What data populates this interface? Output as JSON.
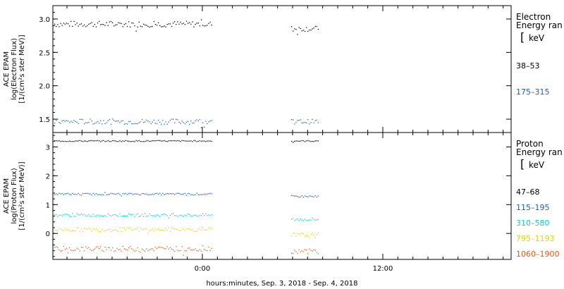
{
  "chart_data": [
    {
      "type": "scatter",
      "panel": "electron",
      "ylabel_lines": [
        "ACE EPAM",
        "log(Electron Flux)",
        "[1/(cm²s ster MeV)]"
      ],
      "ylim": [
        1.3,
        3.2
      ],
      "yticks": [
        "1.5",
        "2.0",
        "2.5",
        "3.0"
      ],
      "ytick_values": [
        1.5,
        2.0,
        2.5,
        3.0
      ],
      "legend": {
        "title_lines": [
          "Electron",
          "Energy ran"
        ],
        "unit": "keV",
        "bracket": "["
      },
      "series": [
        {
          "name": "38–53",
          "color": "#000000",
          "level": 2.93,
          "spread": 0.045,
          "seg2_level": 2.86,
          "seg2_spread": 0.04
        },
        {
          "name": "175–315",
          "color": "#1560bd",
          "level": 1.47,
          "spread": 0.04,
          "seg2_level": 1.47,
          "seg2_spread": 0.035
        }
      ]
    },
    {
      "type": "scatter",
      "panel": "proton",
      "ylabel_lines": [
        "ACE EPAM",
        "log(Proton Flux)",
        "[1/(cm²s ster MeV)]"
      ],
      "ylim": [
        -0.9,
        3.5
      ],
      "yticks": [
        "0",
        "1",
        "2",
        "3"
      ],
      "ytick_values": [
        0,
        1,
        2,
        3
      ],
      "legend": {
        "title_lines": [
          "Proton",
          "Energy ran"
        ],
        "unit": "keV",
        "bracket": "["
      },
      "series": [
        {
          "name": "47–68",
          "color": "#000000",
          "level": 3.22,
          "spread": 0.02,
          "seg2_level": 3.22,
          "seg2_spread": 0.02
        },
        {
          "name": "115–195",
          "color": "#1560bd",
          "level": 1.38,
          "spread": 0.03,
          "seg2_level": 1.3,
          "seg2_spread": 0.03
        },
        {
          "name": "310–580",
          "color": "#00d0d0",
          "level": 0.65,
          "spread": 0.05,
          "seg2_level": 0.5,
          "seg2_spread": 0.06
        },
        {
          "name": "795–1193",
          "color": "#d8d800",
          "level": 0.15,
          "spread": 0.07,
          "seg2_level": -0.05,
          "seg2_spread": 0.09
        },
        {
          "name": "1060–1900",
          "color": "#e05818",
          "level": -0.52,
          "spread": 0.09,
          "seg2_level": -0.6,
          "seg2_spread": 0.08
        }
      ]
    }
  ],
  "time_axis": {
    "label": "hours:minutes, Sep.  3, 2018 - Sep.  4, 2018",
    "tick_labels": [
      "0:00",
      "12:00"
    ]
  }
}
